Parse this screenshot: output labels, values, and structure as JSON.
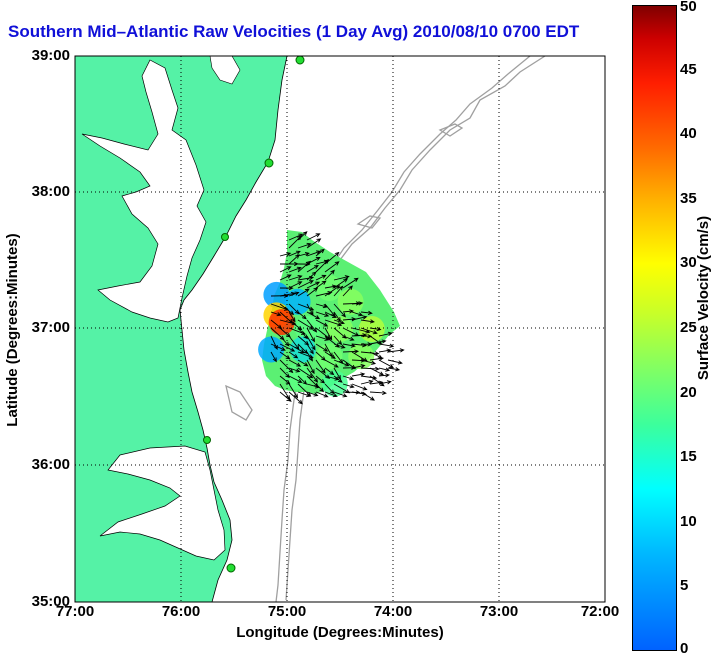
{
  "title": "Southern Mid–Atlantic Raw Velocities (1 Day Avg) 2010/08/10 0700 EDT",
  "chart_data": {
    "type": "heatmap",
    "title": "Southern Mid–Atlantic Raw Velocities (1 Day Avg) 2010/08/10 0700 EDT",
    "xlabel": "Longitude (Degrees:Minutes)",
    "ylabel": "Latitude (Degrees:Minutes)",
    "x_ticks": [
      "77:00",
      "76:00",
      "75:00",
      "74:00",
      "73:00",
      "72:00"
    ],
    "y_ticks": [
      "39:00",
      "38:00",
      "37:00",
      "36:00",
      "35:00"
    ],
    "xlim_deg_west": [
      77,
      72
    ],
    "ylim_deg_north": [
      35,
      39
    ],
    "grid": true,
    "colorbar": {
      "label": "Surface Velocity (cm/s)",
      "ticks": [
        0,
        5,
        10,
        15,
        20,
        25,
        30,
        35,
        40,
        45,
        50
      ],
      "range": [
        0,
        50
      ]
    },
    "velocity_samples": [
      {
        "lon_w": 75.1,
        "lat_n": 37.25,
        "speed": 6
      },
      {
        "lon_w": 74.9,
        "lat_n": 37.2,
        "speed": 8
      },
      {
        "lon_w": 74.6,
        "lat_n": 37.3,
        "speed": 20
      },
      {
        "lon_w": 74.4,
        "lat_n": 37.2,
        "speed": 22
      },
      {
        "lon_w": 75.1,
        "lat_n": 37.1,
        "speed": 33
      },
      {
        "lon_w": 75.05,
        "lat_n": 37.05,
        "speed": 42
      },
      {
        "lon_w": 74.8,
        "lat_n": 37.0,
        "speed": 18
      },
      {
        "lon_w": 74.5,
        "lat_n": 37.0,
        "speed": 22
      },
      {
        "lon_w": 74.2,
        "lat_n": 37.0,
        "speed": 25
      },
      {
        "lon_w": 75.15,
        "lat_n": 36.85,
        "speed": 7
      },
      {
        "lon_w": 74.85,
        "lat_n": 36.85,
        "speed": 12
      },
      {
        "lon_w": 74.6,
        "lat_n": 36.8,
        "speed": 20
      },
      {
        "lon_w": 74.3,
        "lat_n": 36.8,
        "speed": 22
      },
      {
        "lon_w": 74.9,
        "lat_n": 36.65,
        "speed": 18
      },
      {
        "lon_w": 74.55,
        "lat_n": 36.6,
        "speed": 16
      }
    ]
  },
  "colors": {
    "land": "#55f2a6",
    "water": "#ffffff",
    "bathymetry": "#a0a0a0",
    "title": "#1010d8",
    "station": "#22dd33"
  }
}
